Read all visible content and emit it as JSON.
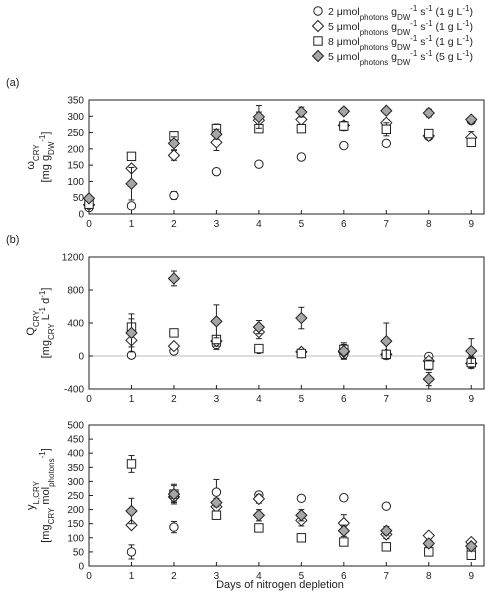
{
  "legend": [
    {
      "marker": "circle",
      "label_html": "2 μmol<tspan baseline-shift='sub' font-size='8'>photons</tspan> g<tspan baseline-shift='sub' font-size='8'>DW</tspan><tspan baseline-shift='super' font-size='8'>-1</tspan> s<tspan baseline-shift='super' font-size='8'>-1</tspan> (1 g L<tspan baseline-shift='super' font-size='8'>-1</tspan>)"
    },
    {
      "marker": "diamond",
      "label_html": "5 μmol<tspan baseline-shift='sub' font-size='8'>photons</tspan> g<tspan baseline-shift='sub' font-size='8'>DW</tspan><tspan baseline-shift='super' font-size='8'>-1</tspan> s<tspan baseline-shift='super' font-size='8'>-1</tspan> (1 g L<tspan baseline-shift='super' font-size='8'>-1</tspan>)"
    },
    {
      "marker": "square",
      "label_html": "8 μmol<tspan baseline-shift='sub' font-size='8'>photons</tspan> g<tspan baseline-shift='sub' font-size='8'>DW</tspan><tspan baseline-shift='super' font-size='8'>-1</tspan> s<tspan baseline-shift='super' font-size='8'>-1</tspan> (1 g L<tspan baseline-shift='super' font-size='8'>-1</tspan>)"
    },
    {
      "marker": "grey-diamond",
      "label_html": "5 μmol<tspan baseline-shift='sub' font-size='8'>photons</tspan> g<tspan baseline-shift='sub' font-size='8'>DW</tspan><tspan baseline-shift='super' font-size='8'>-1</tspan> s<tspan baseline-shift='super' font-size='8'>-1</tspan> (5 g L<tspan baseline-shift='super' font-size='8'>-1</tspan>)"
    }
  ],
  "colors": {
    "axis": "#222222",
    "grey_fill": "#a6a6a6",
    "zero_line": "#bbbbbb"
  },
  "xlabel": "Days of nitrogen depletion",
  "chart_data": [
    {
      "type": "scatter",
      "panel_label": "(a)",
      "ylabel_html": [
        "ω<tspan baseline-shift='sub' font-size='8'>CRY</tspan>",
        "[mg g<tspan baseline-shift='sub' font-size='8'>DW</tspan><tspan baseline-shift='super' font-size='8'>-1</tspan>]"
      ],
      "xlim": [
        0,
        9.3
      ],
      "ylim": [
        0,
        350
      ],
      "xticks": [
        0,
        1,
        2,
        3,
        4,
        5,
        6,
        7,
        8,
        9
      ],
      "yticks": [
        0,
        50,
        100,
        150,
        200,
        250,
        300,
        350
      ],
      "series": [
        {
          "marker": "circle",
          "x": [
            0,
            1,
            2,
            3,
            4,
            5,
            6,
            7,
            8,
            9
          ],
          "y": [
            20,
            25,
            57,
            130,
            153,
            175,
            210,
            217,
            238,
            287
          ],
          "err": [
            6,
            6,
            12,
            5,
            5,
            4,
            5,
            5,
            6,
            6
          ]
        },
        {
          "marker": "diamond",
          "x": [
            0,
            1,
            2,
            3,
            4,
            5,
            6,
            7,
            8,
            9
          ],
          "y": [
            28,
            140,
            180,
            220,
            288,
            290,
            272,
            280,
            240,
            235
          ],
          "err": [
            6,
            8,
            15,
            25,
            25,
            15,
            12,
            10,
            10,
            18
          ]
        },
        {
          "marker": "square",
          "x": [
            0,
            1,
            2,
            3,
            4,
            5,
            6,
            7,
            8,
            9
          ],
          "y": [
            30,
            177,
            240,
            262,
            262,
            262,
            270,
            260,
            247,
            220
          ],
          "err": [
            5,
            5,
            6,
            14,
            8,
            6,
            14,
            20,
            12,
            10
          ]
        },
        {
          "marker": "grey-diamond",
          "x": [
            0,
            1,
            2,
            3,
            4,
            5,
            6,
            7,
            8,
            9
          ],
          "y": [
            48,
            93,
            217,
            245,
            298,
            313,
            315,
            317,
            310,
            290
          ],
          "err": [
            8,
            50,
            20,
            15,
            35,
            15,
            10,
            6,
            12,
            8
          ]
        }
      ]
    },
    {
      "type": "scatter",
      "panel_label": "(b)",
      "ylabel_html": [
        "Q<tspan baseline-shift='sub' font-size='8'>CRY</tspan>",
        "[mg<tspan baseline-shift='sub' font-size='8'>CRY</tspan> L<tspan baseline-shift='super' font-size='8'>-1</tspan> d<tspan baseline-shift='super' font-size='8'>-1</tspan>]"
      ],
      "xlim": [
        0,
        9.3
      ],
      "ylim": [
        -400,
        1200
      ],
      "xticks": [
        0,
        1,
        2,
        3,
        4,
        5,
        6,
        7,
        8,
        9
      ],
      "yticks": [
        -400,
        0,
        400,
        800,
        1200
      ],
      "zero_line": true,
      "series": [
        {
          "marker": "circle",
          "x": [
            1,
            2,
            3,
            4,
            5,
            6,
            7,
            8,
            9
          ],
          "y": [
            10,
            60,
            140,
            80,
            30,
            20,
            20,
            -5,
            -60
          ],
          "err": [
            15,
            20,
            60,
            20,
            15,
            40,
            30,
            20,
            60
          ]
        },
        {
          "marker": "diamond",
          "x": [
            1,
            2,
            3,
            4,
            5,
            6,
            7,
            8,
            9
          ],
          "y": [
            190,
            120,
            180,
            290,
            50,
            50,
            20,
            -60,
            -90
          ],
          "err": [
            80,
            30,
            60,
            80,
            30,
            80,
            30,
            40,
            60
          ]
        },
        {
          "marker": "square",
          "x": [
            1,
            2,
            3,
            4,
            5,
            6,
            7,
            8,
            9
          ],
          "y": [
            350,
            280,
            200,
            90,
            30,
            80,
            20,
            -110,
            -80
          ],
          "err": [
            100,
            20,
            40,
            30,
            20,
            60,
            40,
            60,
            60
          ]
        },
        {
          "marker": "grey-diamond",
          "x": [
            1,
            2,
            3,
            4,
            5,
            6,
            7,
            8,
            9
          ],
          "y": [
            280,
            940,
            420,
            350,
            460,
            60,
            180,
            -280,
            60
          ],
          "err": [
            230,
            90,
            200,
            80,
            130,
            100,
            220,
            80,
            150
          ]
        }
      ]
    },
    {
      "type": "scatter",
      "panel_label": "",
      "ylabel_html": [
        "y<tspan baseline-shift='sub' font-size='8'>L,CRY</tspan>",
        "[mg<tspan baseline-shift='sub' font-size='8'>CRY</tspan> mol<tspan baseline-shift='sub' font-size='8'>photons</tspan><tspan baseline-shift='super' font-size='8'>-1</tspan>]"
      ],
      "xlim": [
        0,
        9.3
      ],
      "ylim": [
        0,
        500
      ],
      "xticks": [
        0,
        1,
        2,
        3,
        4,
        5,
        6,
        7,
        8,
        9
      ],
      "yticks": [
        0,
        50,
        100,
        150,
        200,
        250,
        300,
        350,
        400,
        450,
        500
      ],
      "series": [
        {
          "marker": "circle",
          "x": [
            1,
            2,
            3,
            4,
            5,
            6,
            7,
            8,
            9
          ],
          "y": [
            50,
            138,
            262,
            252,
            240,
            242,
            212,
            80,
            60
          ],
          "err": [
            25,
            20,
            45,
            10,
            5,
            5,
            8,
            8,
            8
          ]
        },
        {
          "marker": "diamond",
          "x": [
            1,
            2,
            3,
            4,
            5,
            6,
            7,
            8,
            9
          ],
          "y": [
            145,
            245,
            210,
            238,
            162,
            152,
            112,
            108,
            85
          ],
          "err": [
            10,
            15,
            20,
            15,
            20,
            30,
            15,
            8,
            8
          ]
        },
        {
          "marker": "square",
          "x": [
            1,
            2,
            3,
            4,
            5,
            6,
            7,
            8,
            9
          ],
          "y": [
            362,
            255,
            180,
            135,
            100,
            85,
            68,
            50,
            38
          ],
          "err": [
            30,
            35,
            10,
            8,
            6,
            6,
            6,
            5,
            5
          ]
        },
        {
          "marker": "grey-diamond",
          "x": [
            1,
            2,
            3,
            4,
            5,
            6,
            7,
            8,
            9
          ],
          "y": [
            195,
            255,
            225,
            180,
            180,
            125,
            125,
            80,
            70
          ],
          "err": [
            45,
            30,
            15,
            20,
            20,
            20,
            15,
            10,
            8
          ]
        }
      ]
    }
  ]
}
